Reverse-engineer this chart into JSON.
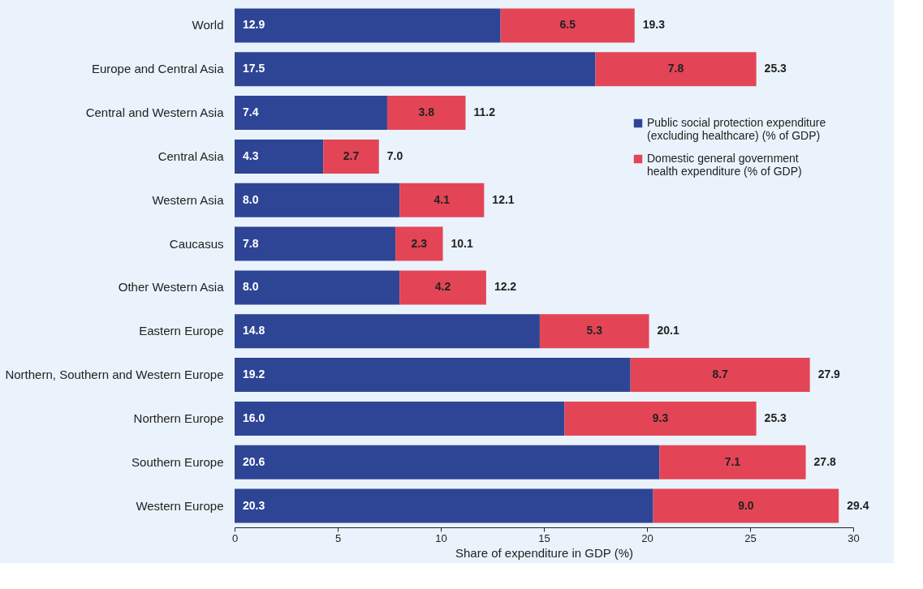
{
  "chart_data": {
    "type": "bar",
    "orientation": "horizontal",
    "stacked": true,
    "categories": [
      "World",
      "Europe and Central Asia",
      "Central and Western Asia",
      "Central Asia",
      "Western Asia",
      "Caucasus",
      "Other Western Asia",
      "Eastern Europe",
      "Northern, Southern and Western Europe",
      "Northern Europe",
      "Southern Europe",
      "Western Europe"
    ],
    "series": [
      {
        "name": "Public social protection expenditure (excluding healthcare) (% of GDP)",
        "color": "#2e4596",
        "values": [
          12.9,
          17.5,
          7.4,
          4.3,
          8.0,
          7.8,
          8.0,
          14.8,
          19.2,
          16.0,
          20.6,
          20.3
        ],
        "value_labels": [
          "12.9",
          "17.5",
          "7.4",
          "4.3",
          "8.0",
          "7.8",
          "8.0",
          "14.8",
          "19.2",
          "16.0",
          "20.6",
          "20.3"
        ]
      },
      {
        "name": "Domestic general government health expenditure (% of GDP)",
        "color": "#e34556",
        "values": [
          6.5,
          7.8,
          3.8,
          2.7,
          4.1,
          2.3,
          4.2,
          5.3,
          8.7,
          9.3,
          7.1,
          9.0
        ],
        "value_labels": [
          "6.5",
          "7.8",
          "3.8",
          "2.7",
          "4.1",
          "2.3",
          "4.2",
          "5.3",
          "8.7",
          "9.3",
          "7.1",
          "9.0"
        ]
      }
    ],
    "totals": [
      "19.3",
      "25.3",
      "11.2",
      "7.0",
      "12.1",
      "10.1",
      "12.2",
      "20.1",
      "27.9",
      "25.3",
      "27.8",
      "29.4"
    ],
    "xlabel": "Share of expenditure in GDP (%)",
    "xlim": [
      0,
      30
    ],
    "xticks": [
      0,
      5,
      10,
      15,
      20,
      25,
      30
    ],
    "grid": false,
    "legend": "right"
  }
}
